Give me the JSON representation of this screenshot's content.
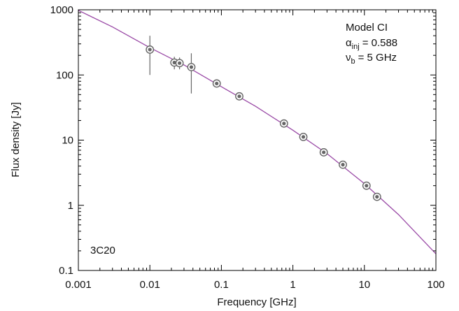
{
  "chart_data": {
    "type": "scatter",
    "xscale": "log",
    "yscale": "log",
    "xlim": [
      0.001,
      100
    ],
    "ylim": [
      0.1,
      1000
    ],
    "xlabel": "Frequency [GHz]",
    "ylabel": "Flux density [Jy]",
    "x_ticks": [
      {
        "value": 0.001,
        "label": "0.001"
      },
      {
        "value": 0.01,
        "label": "0.01"
      },
      {
        "value": 0.1,
        "label": "0.1"
      },
      {
        "value": 1,
        "label": "1"
      },
      {
        "value": 10,
        "label": "10"
      },
      {
        "value": 100,
        "label": "100"
      }
    ],
    "y_ticks": [
      {
        "value": 0.1,
        "label": "0.1"
      },
      {
        "value": 1,
        "label": "1"
      },
      {
        "value": 10,
        "label": "10"
      },
      {
        "value": 100,
        "label": "100"
      },
      {
        "value": 1000,
        "label": "1000"
      }
    ],
    "source_label": "3C20",
    "legend": {
      "model": "Model CI",
      "alpha_symbol": "α",
      "alpha_sub": "inj",
      "alpha_value": "= 0.588",
      "nu_symbol": "ν",
      "nu_sub": "b",
      "nu_value": "= 5 GHz"
    },
    "series": [
      {
        "kind": "points",
        "points": [
          {
            "x": 0.01,
            "y": 245,
            "ylo": 100,
            "yhi": 400
          },
          {
            "x": 0.022,
            "y": 155,
            "ylo": 122,
            "yhi": 190
          },
          {
            "x": 0.026,
            "y": 152,
            "ylo": 122,
            "yhi": 185
          },
          {
            "x": 0.038,
            "y": 132,
            "ylo": 52,
            "yhi": 215
          },
          {
            "x": 0.086,
            "y": 74,
            "ylo": 74,
            "yhi": 74
          },
          {
            "x": 0.178,
            "y": 47,
            "ylo": 47,
            "yhi": 47
          },
          {
            "x": 0.75,
            "y": 18,
            "ylo": 18,
            "yhi": 18
          },
          {
            "x": 1.4,
            "y": 11.2,
            "ylo": 11.2,
            "yhi": 11.2
          },
          {
            "x": 2.7,
            "y": 6.5,
            "ylo": 6.5,
            "yhi": 6.5
          },
          {
            "x": 5.0,
            "y": 4.2,
            "ylo": 4.2,
            "yhi": 4.2
          },
          {
            "x": 10.7,
            "y": 2.0,
            "ylo": 2.0,
            "yhi": 2.0
          },
          {
            "x": 15.0,
            "y": 1.35,
            "ylo": 1.35,
            "yhi": 1.35
          }
        ]
      },
      {
        "kind": "line",
        "points": [
          {
            "x": 0.001,
            "y": 980
          },
          {
            "x": 0.003,
            "y": 545
          },
          {
            "x": 0.01,
            "y": 262
          },
          {
            "x": 0.03,
            "y": 142
          },
          {
            "x": 0.1,
            "y": 66
          },
          {
            "x": 0.3,
            "y": 33
          },
          {
            "x": 1,
            "y": 14.2
          },
          {
            "x": 3,
            "y": 6.2
          },
          {
            "x": 10,
            "y": 2.15
          },
          {
            "x": 30,
            "y": 0.72
          },
          {
            "x": 100,
            "y": 0.18
          }
        ]
      }
    ],
    "colors": {
      "model_line": "#9a4aa6",
      "marker": "#666666",
      "error_bar": "#666666",
      "axis": "#000000"
    }
  }
}
